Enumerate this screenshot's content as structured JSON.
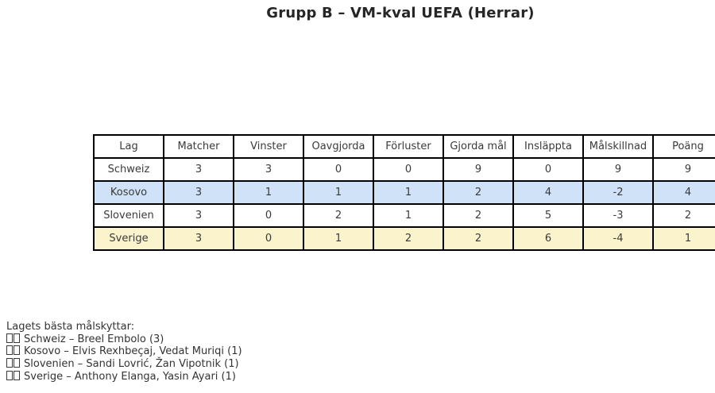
{
  "chart_data": {
    "type": "table",
    "title": "Grupp B – VM-kval UEFA (Herrar)",
    "columns": [
      "Lag",
      "Matcher",
      "Vinster",
      "Oavgjorda",
      "Förluster",
      "Gjorda mål",
      "Insläppta",
      "Målskillnad",
      "Poäng"
    ],
    "rows": [
      {
        "team": "Schweiz",
        "values": [
          3,
          3,
          0,
          0,
          9,
          0,
          9,
          9
        ],
        "highlight": "none"
      },
      {
        "team": "Kosovo",
        "values": [
          3,
          1,
          1,
          1,
          2,
          4,
          -2,
          4
        ],
        "highlight": "blue"
      },
      {
        "team": "Slovenien",
        "values": [
          3,
          0,
          2,
          1,
          2,
          5,
          -3,
          2
        ],
        "highlight": "none"
      },
      {
        "team": "Sverige",
        "values": [
          3,
          0,
          1,
          2,
          2,
          6,
          -4,
          1
        ],
        "highlight": "yellow"
      }
    ],
    "grid": "full cell borders, black",
    "legend_position": "none"
  },
  "scorers": {
    "heading": "Lagets bästa målskyttar:",
    "items": [
      {
        "flag_glyph": "□□ (missing emoji boxes)",
        "text": "Schweiz – Breel Embolo (3)"
      },
      {
        "flag_glyph": "□□ (missing emoji boxes)",
        "text": "Kosovo – Elvis Rexhbeçaj, Vedat Muriqi (1)"
      },
      {
        "flag_glyph": "□□ (missing emoji boxes)",
        "text": "Slovenien – Sandi Lovrić, Žan Vipotnik (1)"
      },
      {
        "flag_glyph": "□□ (missing emoji boxes)",
        "text": "Sverige – Anthony Elanga, Yasin Ayari (1)"
      }
    ]
  },
  "colors": {
    "background": "#ffffff",
    "table_border": "#000000",
    "text": "#333333",
    "highlight_blue": "#cfe2f7",
    "highlight_yellow": "#fbf3cc"
  }
}
